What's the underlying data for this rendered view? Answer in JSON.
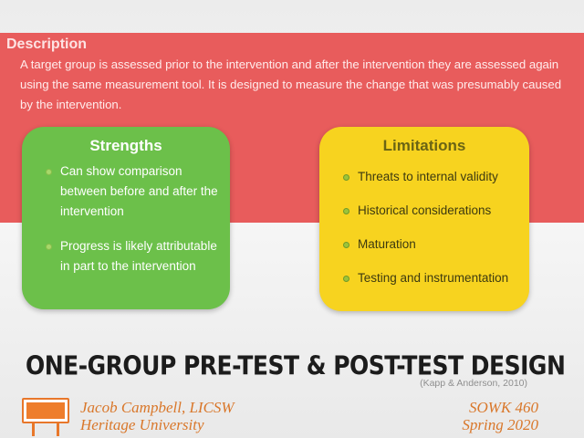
{
  "description": {
    "title": "Description",
    "body": "A target group is assessed prior to the intervention and after the intervention they are assessed again using the same measurement tool. It is designed to measure the change that was presumably caused by the intervention."
  },
  "strengths": {
    "title": "Strengths",
    "items": [
      "Can show comparison between before and after the intervention",
      "Progress is likely attributable in part to the intervention"
    ]
  },
  "limitations": {
    "title": "Limitations",
    "items": [
      "Threats to internal validity",
      "Historical considerations",
      "Maturation",
      "Testing and instrumentation"
    ]
  },
  "title": "ONE-GROUP PRE-TEST & POST-TEST DESIGN",
  "citation": "(Kapp & Anderson, 2010)",
  "footer": {
    "author": "Jacob Campbell, LICSW",
    "institution": "Heritage University",
    "course": "SOWK 460",
    "term": "Spring 2020",
    "icon": "billboard-sign-icon"
  },
  "colors": {
    "band": "#e85c5c",
    "strengths_card": "#6cc04a",
    "limitations_card": "#f7d31f",
    "footer_text": "#d9772a"
  }
}
